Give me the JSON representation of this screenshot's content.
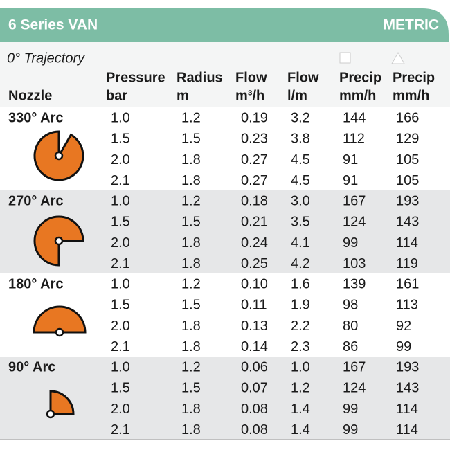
{
  "header": {
    "title": "6 Series VAN",
    "units": "METRIC"
  },
  "trajectory": "0° Trajectory",
  "columns": [
    [
      "Nozzle"
    ],
    [
      "Pressure",
      "bar"
    ],
    [
      "Radius",
      "m"
    ],
    [
      "Flow",
      "m³/h"
    ],
    [
      "Flow",
      "l/m"
    ],
    [
      "Precip",
      "mm/h"
    ],
    [
      "Precip",
      "mm/h"
    ]
  ],
  "groups": [
    {
      "nozzle": "330° Arc",
      "rows": [
        [
          "1.0",
          "1.2",
          "0.19",
          "3.2",
          "144",
          "166"
        ],
        [
          "1.5",
          "1.5",
          "0.23",
          "3.8",
          "112",
          "129"
        ],
        [
          "2.0",
          "1.8",
          "0.27",
          "4.5",
          "91",
          "105"
        ],
        [
          "2.1",
          "1.8",
          "0.27",
          "4.5",
          "91",
          "105"
        ]
      ]
    },
    {
      "nozzle": "270° Arc",
      "rows": [
        [
          "1.0",
          "1.2",
          "0.18",
          "3.0",
          "167",
          "193"
        ],
        [
          "1.5",
          "1.5",
          "0.21",
          "3.5",
          "124",
          "143"
        ],
        [
          "2.0",
          "1.8",
          "0.24",
          "4.1",
          "99",
          "114"
        ],
        [
          "2.1",
          "1.8",
          "0.25",
          "4.2",
          "103",
          "119"
        ]
      ]
    },
    {
      "nozzle": "180° Arc",
      "rows": [
        [
          "1.0",
          "1.2",
          "0.10",
          "1.6",
          "139",
          "161"
        ],
        [
          "1.5",
          "1.5",
          "0.11",
          "1.9",
          "98",
          "113"
        ],
        [
          "2.0",
          "1.8",
          "0.13",
          "2.2",
          "80",
          "92"
        ],
        [
          "2.1",
          "1.8",
          "0.14",
          "2.3",
          "86",
          "99"
        ]
      ]
    },
    {
      "nozzle": "90° Arc",
      "rows": [
        [
          "1.0",
          "1.2",
          "0.06",
          "1.0",
          "167",
          "193"
        ],
        [
          "1.5",
          "1.5",
          "0.07",
          "1.2",
          "124",
          "143"
        ],
        [
          "2.0",
          "1.8",
          "0.08",
          "1.4",
          "99",
          "114"
        ],
        [
          "2.1",
          "1.8",
          "0.08",
          "1.4",
          "99",
          "114"
        ]
      ]
    }
  ]
}
